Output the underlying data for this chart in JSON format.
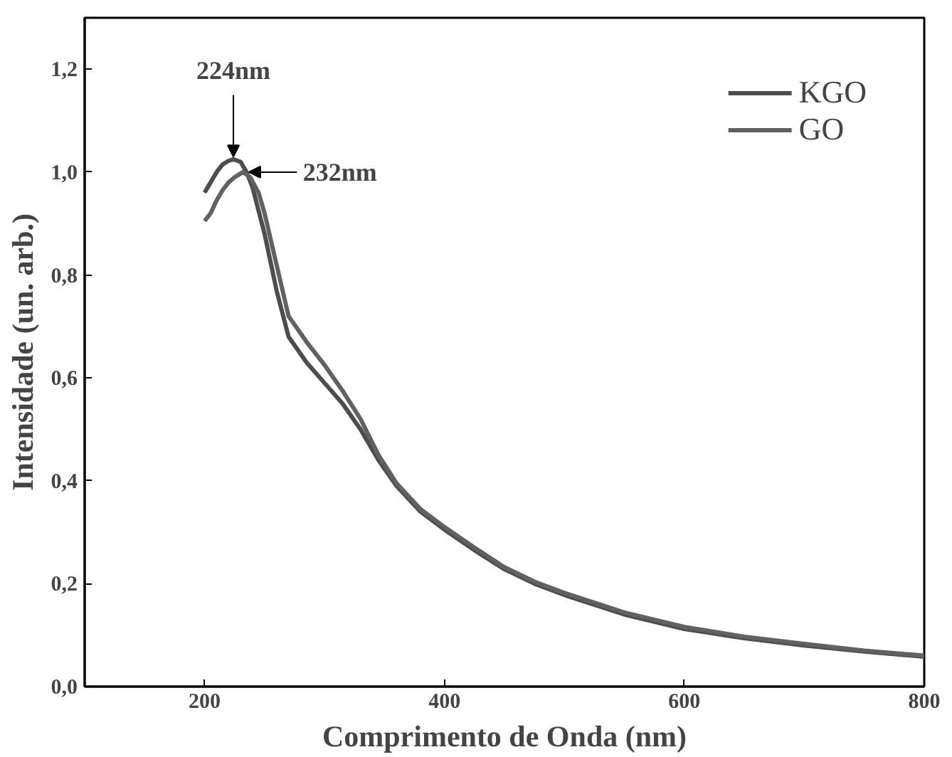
{
  "chart_data": {
    "type": "line",
    "xlabel": "Comprimento de Onda (nm)",
    "ylabel": "Intensidade (un. arb.)",
    "xlim": [
      100,
      800
    ],
    "ylim": [
      0,
      1.3
    ],
    "xticks": [
      200,
      400,
      600,
      800
    ],
    "yticks": [
      {
        "value": 0,
        "label": "0,0"
      },
      {
        "value": 0.2,
        "label": "0,2"
      },
      {
        "value": 0.4,
        "label": "0,4"
      },
      {
        "value": 0.6,
        "label": "0,6"
      },
      {
        "value": 0.8,
        "label": "0,8"
      },
      {
        "value": 1.0,
        "label": "1,0"
      },
      {
        "value": 1.2,
        "label": "1,2"
      }
    ],
    "grid": false,
    "legend": "top right",
    "marker": "none",
    "line_style": "solid",
    "annotations": [
      {
        "text": "224nm",
        "x": 224,
        "y": 1.02
      },
      {
        "text": "232nm",
        "x": 232,
        "y": 1.0
      }
    ],
    "series": [
      {
        "name": "KGO",
        "color": "#4d4d4d",
        "x": [
          200,
          205,
          210,
          215,
          220,
          224,
          230,
          235,
          240,
          250,
          260,
          270,
          285,
          300,
          315,
          330,
          345,
          360,
          380,
          400,
          425,
          450,
          475,
          500,
          550,
          600,
          650,
          700,
          750,
          800
        ],
        "values": [
          0.96,
          0.98,
          1.0,
          1.015,
          1.022,
          1.025,
          1.02,
          1.0,
          0.97,
          0.88,
          0.77,
          0.68,
          0.63,
          0.59,
          0.55,
          0.5,
          0.44,
          0.39,
          0.34,
          0.305,
          0.265,
          0.228,
          0.2,
          0.178,
          0.14,
          0.112,
          0.094,
          0.08,
          0.068,
          0.058
        ]
      },
      {
        "name": "GO",
        "color": "#616161",
        "x": [
          200,
          205,
          210,
          215,
          220,
          225,
          232,
          238,
          245,
          250,
          260,
          270,
          285,
          300,
          315,
          330,
          345,
          360,
          380,
          400,
          425,
          450,
          475,
          500,
          550,
          600,
          650,
          700,
          750,
          800
        ],
        "values": [
          0.905,
          0.92,
          0.945,
          0.965,
          0.98,
          0.99,
          1.0,
          0.99,
          0.96,
          0.92,
          0.82,
          0.72,
          0.67,
          0.625,
          0.575,
          0.52,
          0.45,
          0.395,
          0.345,
          0.31,
          0.27,
          0.232,
          0.204,
          0.182,
          0.144,
          0.116,
          0.097,
          0.083,
          0.07,
          0.06
        ]
      }
    ]
  }
}
